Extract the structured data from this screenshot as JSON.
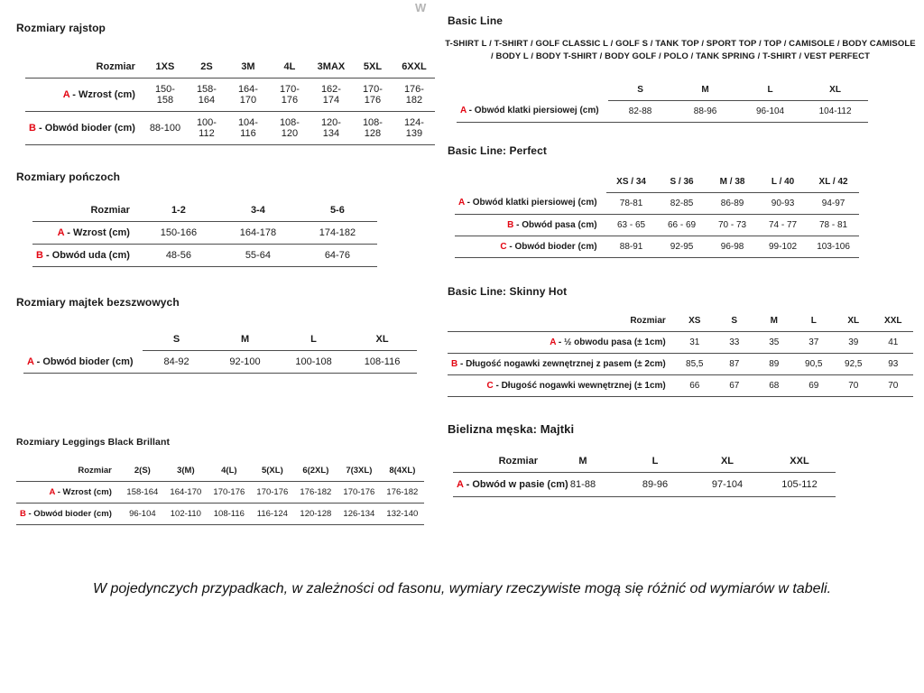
{
  "page": {
    "watermark": "W",
    "note": "W pojedynczych przypadkach, w zależności od fasonu, wymiary rzeczywiste mogą się różnić od wymiarów w tabeli."
  },
  "left": {
    "rajstopy": {
      "title": "Rozmiary rajstop",
      "table": {
        "corner": "Rozmiar",
        "headers": [
          "1XS",
          "2S",
          "3M",
          "4L",
          "3MAX",
          "5XL",
          "6XXL"
        ],
        "rows": [
          {
            "prefix": "A",
            "label": "- Wzrost (cm)",
            "values": [
              "150-158",
              "158-164",
              "164-170",
              "170-176",
              "162-174",
              "170-176",
              "176-182"
            ]
          },
          {
            "prefix": "B",
            "label": "- Obwód bioder (cm)",
            "values": [
              "88-100",
              "100-112",
              "104-116",
              "108-120",
              "120-134",
              "108-128",
              "124-139"
            ]
          }
        ]
      }
    },
    "ponczochy": {
      "title": "Rozmiary pończoch",
      "table": {
        "corner": "Rozmiar",
        "headers": [
          "1-2",
          "3-4",
          "5-6"
        ],
        "rows": [
          {
            "prefix": "A",
            "label": "- Wzrost (cm)",
            "values": [
              "150-166",
              "164-178",
              "174-182"
            ]
          },
          {
            "prefix": "B",
            "label": "- Obwód uda (cm)",
            "values": [
              "48-56",
              "55-64",
              "64-76"
            ]
          }
        ]
      }
    },
    "majtki_bezszwowe": {
      "title": "Rozmiary majtek bezszwowych",
      "table": {
        "corner": "",
        "headers": [
          "S",
          "M",
          "L",
          "XL"
        ],
        "rows": [
          {
            "prefix": "A",
            "label": "- Obwód bioder (cm)",
            "values": [
              "84-92",
              "92-100",
              "100-108",
              "108-116"
            ]
          }
        ]
      }
    },
    "leggings": {
      "title": "Rozmiary Leggings Black Brillant",
      "table": {
        "corner": "Rozmiar",
        "headers": [
          "2(S)",
          "3(M)",
          "4(L)",
          "5(XL)",
          "6(2XL)",
          "7(3XL)",
          "8(4XL)"
        ],
        "rows": [
          {
            "prefix": "A",
            "label": "- Wzrost (cm)",
            "values": [
              "158-164",
              "164-170",
              "170-176",
              "170-176",
              "176-182",
              "170-176",
              "176-182"
            ]
          },
          {
            "prefix": "B",
            "label": "- Obwód bioder (cm)",
            "values": [
              "96-104",
              "102-110",
              "108-116",
              "116-124",
              "120-128",
              "126-134",
              "132-140"
            ]
          }
        ]
      }
    }
  },
  "right": {
    "basic_line": {
      "title": "Basic Line",
      "subtitle": "T-SHIRT L / T-SHIRT / GOLF CLASSIC L / GOLF S / TANK TOP / SPORT TOP / TOP / CAMISOLE / BODY CAMISOLE / BODY L / BODY T-SHIRT / BODY GOLF / POLO / TANK SPRING / T-SHIRT / VEST PERFECT",
      "table": {
        "corner": "",
        "headers": [
          "S",
          "M",
          "L",
          "XL"
        ],
        "rows": [
          {
            "prefix": "A",
            "label": "- Obwód klatki piersiowej (cm)",
            "values": [
              "82-88",
              "88-96",
              "96-104",
              "104-112"
            ]
          }
        ]
      }
    },
    "perfect": {
      "title": "Basic Line: Perfect",
      "table": {
        "corner": "",
        "headers": [
          "XS / 34",
          "S / 36",
          "M / 38",
          "L / 40",
          "XL / 42"
        ],
        "rows": [
          {
            "prefix": "A",
            "label": "- Obwód klatki piersiowej (cm)",
            "values": [
              "78-81",
              "82-85",
              "86-89",
              "90-93",
              "94-97"
            ]
          },
          {
            "prefix": "B",
            "label": "- Obwód pasa (cm)",
            "values": [
              "63 - 65",
              "66 - 69",
              "70 - 73",
              "74 - 77",
              "78 - 81"
            ]
          },
          {
            "prefix": "C",
            "label": "- Obwód bioder (cm)",
            "values": [
              "88-91",
              "92-95",
              "96-98",
              "99-102",
              "103-106"
            ]
          }
        ]
      }
    },
    "skinny_hot": {
      "title": "Basic Line: Skinny Hot",
      "table": {
        "corner": "Rozmiar",
        "headers": [
          "XS",
          "S",
          "M",
          "L",
          "XL",
          "XXL"
        ],
        "rows": [
          {
            "prefix": "A",
            "label": "- ½ obwodu pasa (± 1cm)",
            "values": [
              "31",
              "33",
              "35",
              "37",
              "39",
              "41"
            ]
          },
          {
            "prefix": "B",
            "label": "- Długość nogawki zewnętrznej z pasem (± 2cm)",
            "values": [
              "85,5",
              "87",
              "89",
              "90,5",
              "92,5",
              "93"
            ]
          },
          {
            "prefix": "C",
            "label": "- Długość nogawki wewnętrznej (± 1cm)",
            "values": [
              "66",
              "67",
              "68",
              "69",
              "70",
              "70"
            ]
          }
        ]
      }
    },
    "majtki_meskie": {
      "title": "Bielizna męska: Majtki",
      "table": {
        "corner": "Rozmiar",
        "headers": [
          "M",
          "L",
          "XL",
          "XXL"
        ],
        "rows": [
          {
            "prefix": "A",
            "label": "- Obwód w pasie (cm)",
            "values": [
              "81-88",
              "89-96",
              "97-104",
              "105-112"
            ]
          }
        ]
      }
    }
  }
}
